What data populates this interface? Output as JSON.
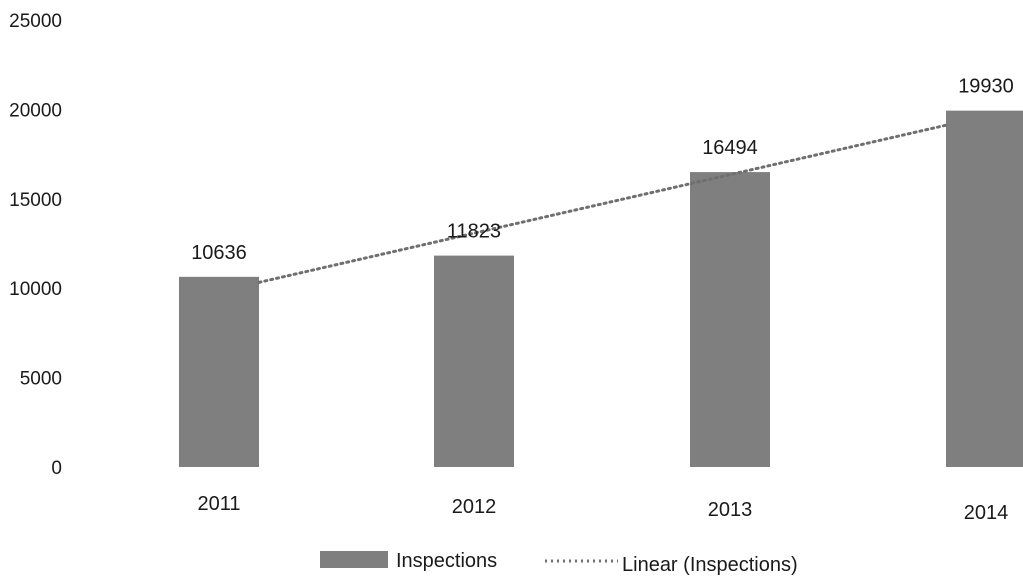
{
  "chart_data": {
    "type": "bar",
    "categories": [
      "2011",
      "2012",
      "2013",
      "2014"
    ],
    "series": [
      {
        "name": "Inspections",
        "values": [
          10636,
          11823,
          16494,
          19930
        ],
        "color": "#7f7f7f"
      }
    ],
    "trendline": {
      "name": "Linear (Inspections)",
      "type": "linear",
      "style": "dotted",
      "color": "#6f6f6f"
    },
    "data_labels": [
      "10636",
      "11823",
      "16494",
      "19930"
    ],
    "yticks": [
      "0",
      "5000",
      "10000",
      "15000",
      "20000",
      "25000"
    ],
    "ylim": [
      0,
      25000
    ],
    "grid": false,
    "legend": {
      "position": "bottom",
      "items": [
        "Inspections",
        "Linear (Inspections)"
      ]
    }
  }
}
